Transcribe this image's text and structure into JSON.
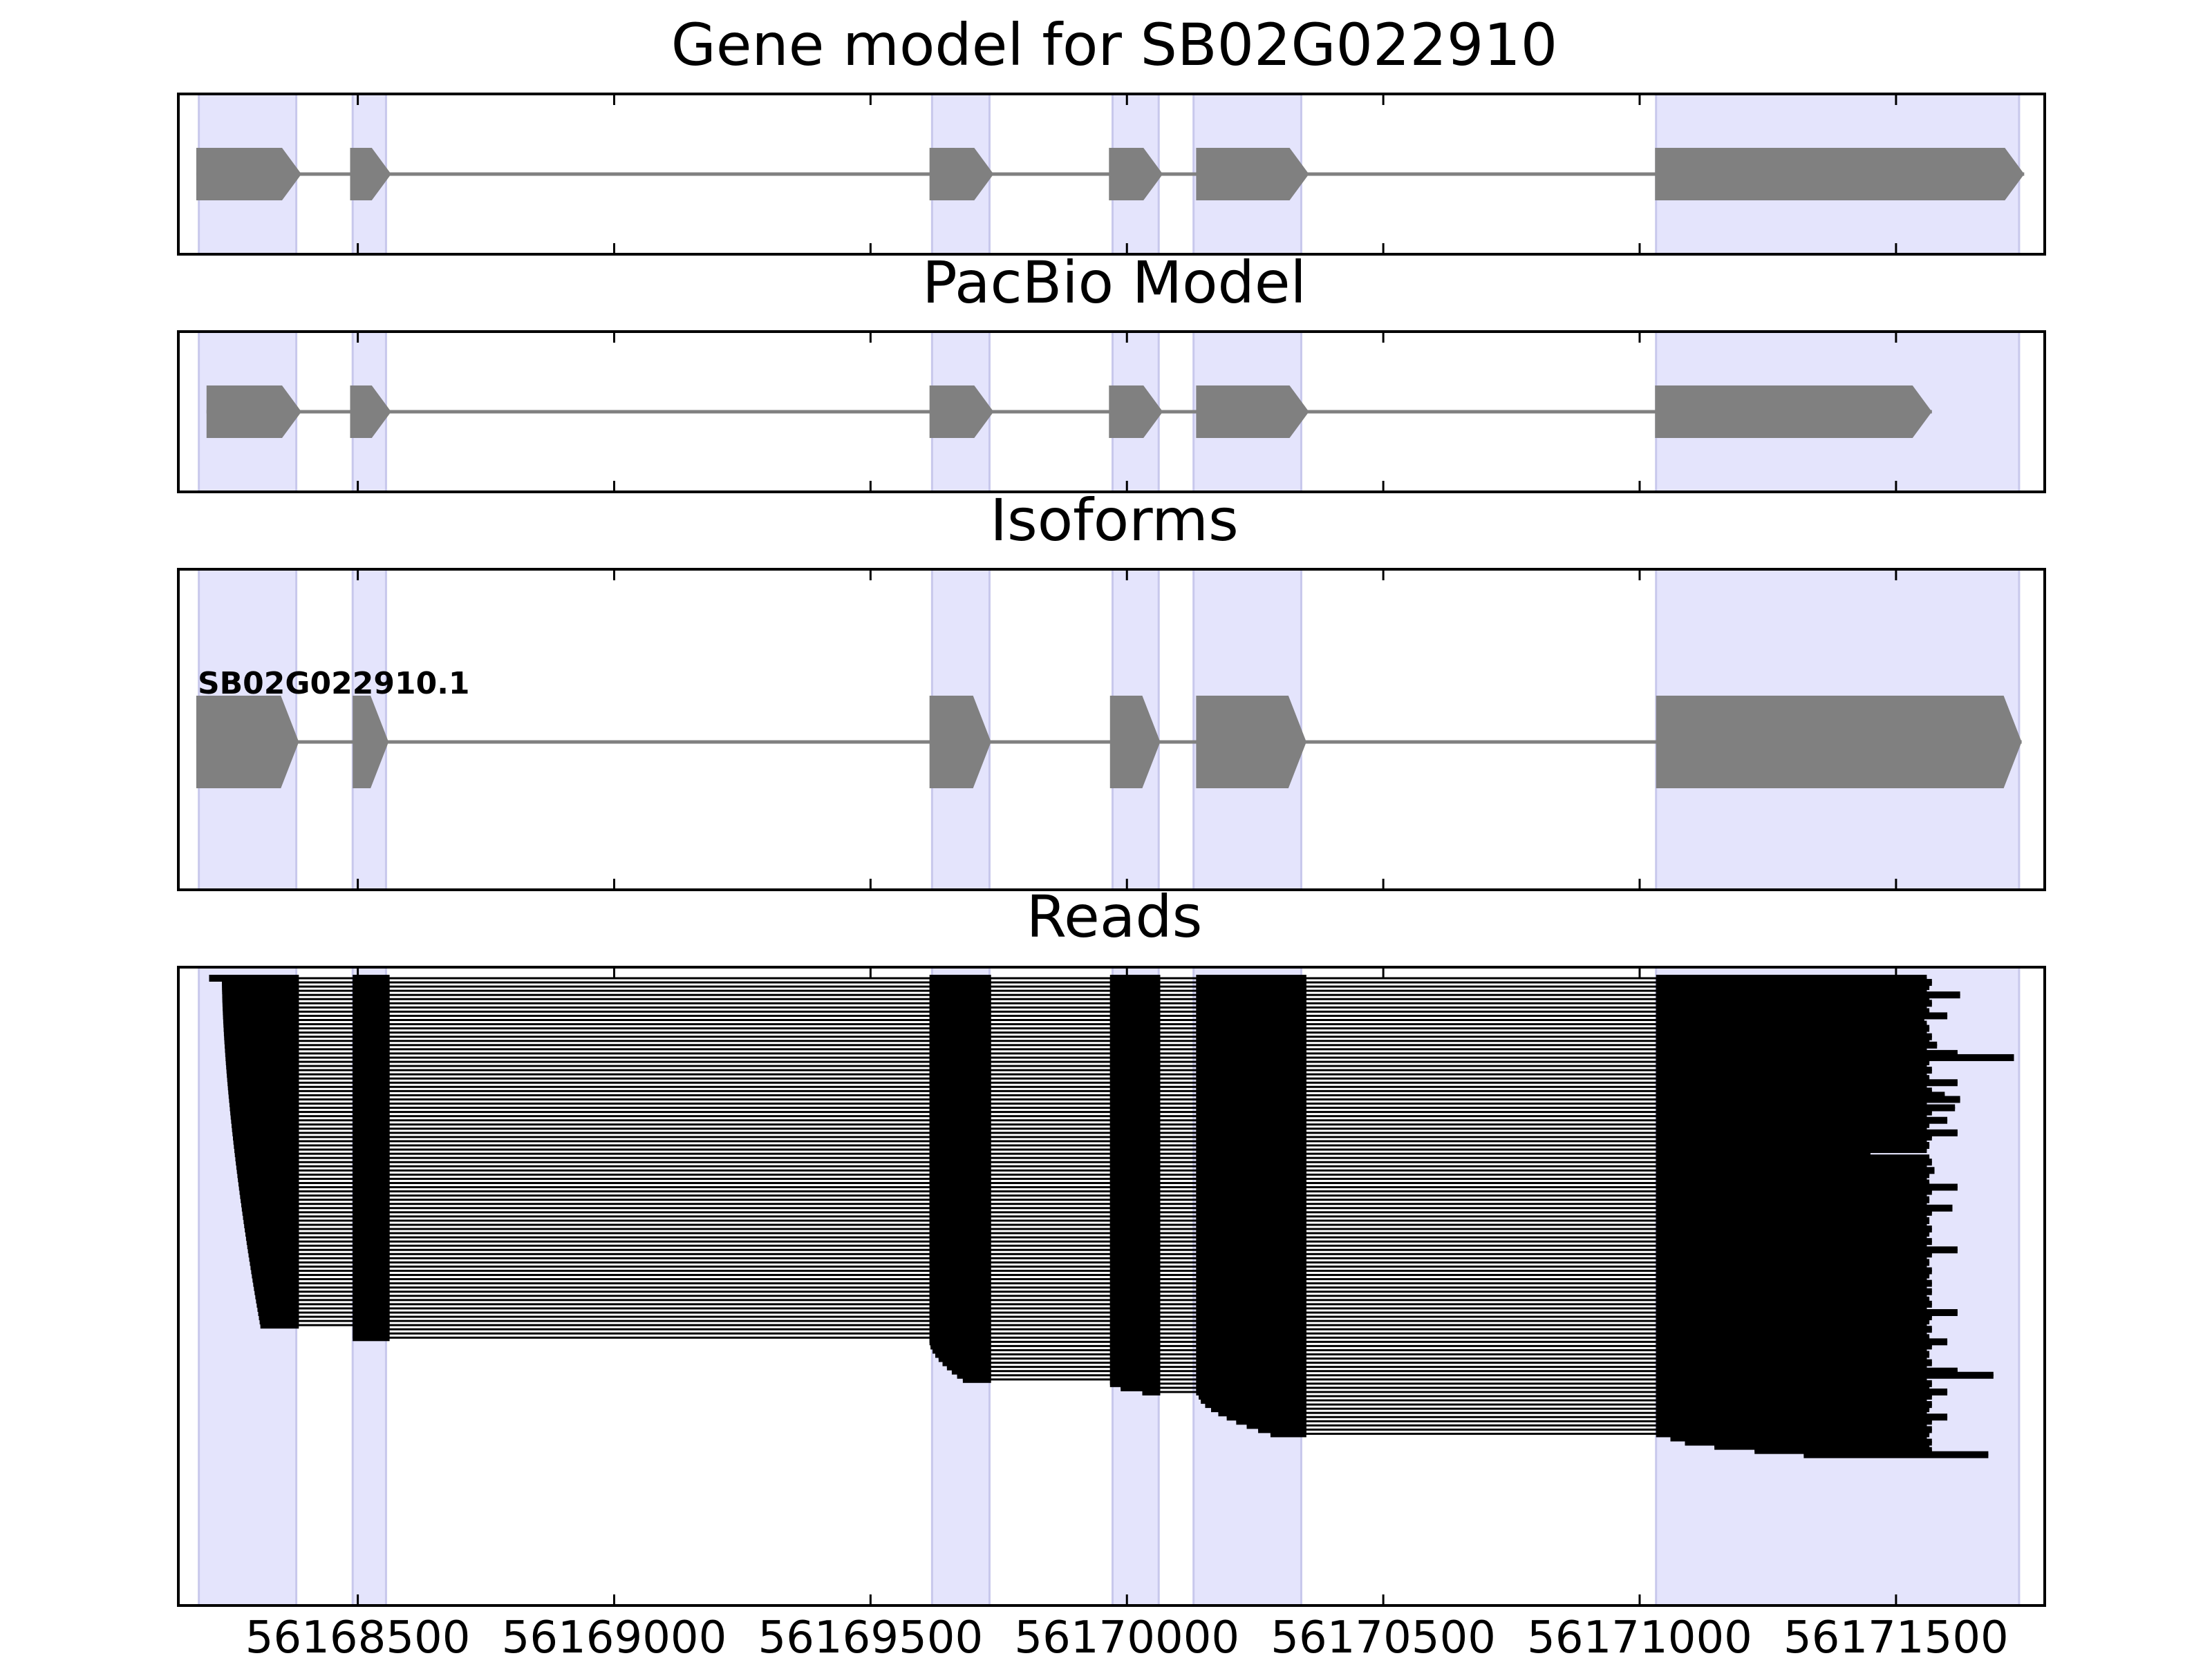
{
  "chart_data": {
    "type": "gene-structure-track",
    "xlim": [
      56168150,
      56171790
    ],
    "x_ticks": [
      56168500,
      56169000,
      56169500,
      56170000,
      56170500,
      56171000,
      56171500
    ],
    "x_tick_labels": [
      "56168500",
      "56169000",
      "56169500",
      "56170000",
      "56170500",
      "56171000",
      "56171500"
    ],
    "highlight_regions": [
      [
        56168190,
        56168380
      ],
      [
        56168490,
        56168555
      ],
      [
        56169620,
        56169732
      ],
      [
        56169972,
        56170062
      ],
      [
        56170130,
        56170340
      ],
      [
        56171032,
        56171740
      ]
    ],
    "colors": {
      "exon": "#808080",
      "intron": "#808080",
      "highlight": "#e4e4fc",
      "highlight_edge": "#c8c8ec",
      "read": "#000000",
      "frame": "#000000"
    },
    "panels": [
      {
        "title": "Gene model for SB02G022910",
        "kind": "gene",
        "exons": [
          [
            56168185,
            56168390
          ],
          [
            56168485,
            56168565
          ],
          [
            56169615,
            56169740
          ],
          [
            56169965,
            56170070
          ],
          [
            56170135,
            56170355
          ],
          [
            56171030,
            56171750
          ]
        ]
      },
      {
        "title": "PacBio Model",
        "kind": "gene",
        "exons": [
          [
            56168205,
            56168390
          ],
          [
            56168485,
            56168565
          ],
          [
            56169615,
            56169740
          ],
          [
            56169965,
            56170070
          ],
          [
            56170135,
            56170355
          ],
          [
            56171030,
            56171570
          ]
        ]
      },
      {
        "title": "Isoforms",
        "kind": "isoform",
        "label": "SB02G022910.1",
        "exons": [
          [
            56168185,
            56168385
          ],
          [
            56168490,
            56168560
          ],
          [
            56169615,
            56169735
          ],
          [
            56169967,
            56170065
          ],
          [
            56170135,
            56170350
          ],
          [
            56171032,
            56171745
          ]
        ]
      },
      {
        "title": "Reads",
        "kind": "reads",
        "groups": {
          "full": {
            "count": 84,
            "exon1_start_first": 56168210,
            "exon1_start_last": 56168310,
            "exon1_end": 56168385,
            "internal_exons": [
              [
                56168490,
                56168562
              ],
              [
                56169615,
                56169735
              ],
              [
                56169967,
                56170065
              ],
              [
                56170135,
                56170350
              ]
            ],
            "last_exon_start": 56171032
          },
          "from_exon2": {
            "count": 3,
            "start": 56168490,
            "internal_exons": [
              [
                56169615,
                56169735
              ],
              [
                56169967,
                56170065
              ],
              [
                56170135,
                56170350
              ]
            ],
            "last_exon_start": 56171032
          },
          "from_exon3": {
            "count": 10,
            "start_first": 56169615,
            "start_last": 56169680,
            "exon3_end": 56169735,
            "internal_exons": [
              [
                56169967,
                56170065
              ],
              [
                56170135,
                56170350
              ]
            ],
            "last_exon_start": 56171032
          },
          "from_exon4": {
            "count": 3,
            "start_first": 56169967,
            "start_last": 56170030,
            "exon4_end": 56170065,
            "internal_exons": [
              [
                56170135,
                56170350
              ]
            ],
            "last_exon_start": 56171032
          },
          "from_exon5": {
            "count": 10,
            "start_first": 56170140,
            "start_last": 56170280,
            "exon5_end": 56170350,
            "last_exon_start": 56171032
          },
          "last_exon_only": {
            "count": 5,
            "start_first": 56171060,
            "start_last": 56171320
          }
        },
        "read_ends": [
          56171560,
          56171570,
          56171565,
          56171560,
          56171625,
          56171565,
          56171570,
          56171560,
          56171565,
          56171600,
          56171555,
          56171560,
          56171565,
          56171560,
          56171570,
          56171565,
          56171580,
          56171560,
          56171620,
          56171730,
          56171565,
          56171560,
          56171570,
          56171560,
          56171565,
          56171620,
          56171560,
          56171570,
          56171595,
          56171625,
          56171560,
          56171615,
          56171570,
          56171560,
          56171600,
          56171565,
          56171560,
          56171620,
          56171570,
          56171560,
          56171565,
          56171560,
          56171450,
          56171565,
          56171570,
          56171560,
          56171575,
          56171565,
          56171560,
          56171565,
          56171620,
          56171570,
          56171560,
          56171565,
          56171560,
          56171610,
          56171570,
          56171560,
          56171565,
          56171560,
          56171570,
          56171565,
          56171560,
          56171570,
          56171560,
          56171620,
          56171570,
          56171560,
          56171565,
          56171560,
          56171570,
          56171565,
          56171560,
          56171570,
          56171560,
          56171570,
          56171560,
          56171565,
          56171570,
          56171560,
          56171620,
          56171570,
          56171565,
          56171560,
          56171570,
          56171560,
          56171565,
          56171600,
          56171570,
          56171560,
          56171565,
          56171560,
          56171570,
          56171560,
          56171620,
          56171690,
          56171560,
          56171570,
          56171565,
          56171600,
          56171570,
          56171560,
          56171570,
          56171565,
          56171560,
          56171600,
          56171570,
          56171560,
          56171570,
          56171565,
          56171560,
          56171570,
          56171565,
          56171570,
          56171680
        ]
      }
    ]
  }
}
